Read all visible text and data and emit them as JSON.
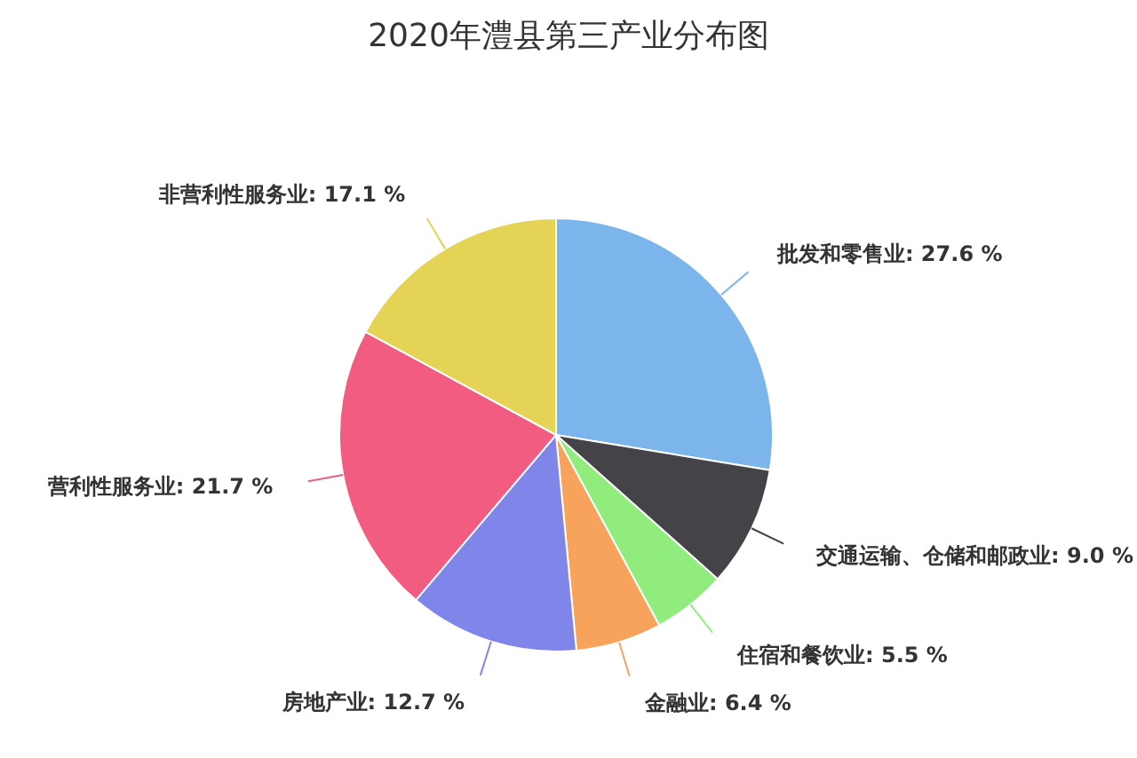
{
  "chart_data": {
    "type": "pie",
    "title": "2020年澧县第三产业分布图",
    "categories": [
      "批发和零售业",
      "交通运输、仓储和邮政业",
      "住宿和餐饮业",
      "金融业",
      "房地产业",
      "营利性服务业",
      "非营利性服务业"
    ],
    "values": [
      27.6,
      9.0,
      5.5,
      6.4,
      12.7,
      21.7,
      17.1
    ],
    "value_labels": [
      "27.6 %",
      "9.0 %",
      "5.5 %",
      "6.4 %",
      "12.7 %",
      "21.7 %",
      "17.1 %"
    ],
    "colors": [
      "#7cb5ec",
      "#434348",
      "#90ed7d",
      "#f7a35c",
      "#8085e9",
      "#f15c80",
      "#e4d354"
    ]
  }
}
